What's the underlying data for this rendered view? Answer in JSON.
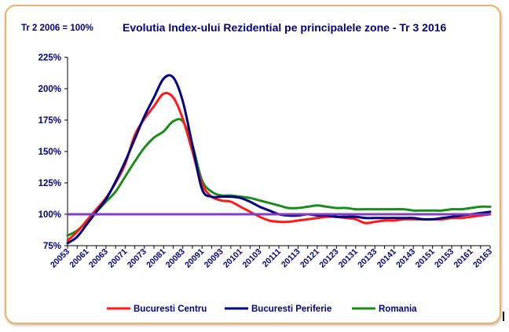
{
  "chart_data": {
    "type": "line",
    "title": "Evolutia Index-ului Rezidential pe principalele zone - Tr 3 2016",
    "subtitle": "Tr 2 2006 = 100%",
    "xlabel": "",
    "ylabel": "",
    "ylim": [
      75,
      225
    ],
    "yticks": [
      "75%",
      "100%",
      "125%",
      "150%",
      "175%",
      "200%",
      "225%"
    ],
    "yticks_values": [
      75,
      100,
      125,
      150,
      175,
      200,
      225
    ],
    "grid": false,
    "legend_position": "bottom",
    "x": [
      "20053",
      "20054",
      "20061",
      "20062",
      "20063",
      "20064",
      "20071",
      "20072",
      "20073",
      "20074",
      "20081",
      "20082",
      "20083",
      "20084",
      "20091",
      "20092",
      "20093",
      "20094",
      "20101",
      "20102",
      "20103",
      "20104",
      "20111",
      "20112",
      "20113",
      "20114",
      "20121",
      "20122",
      "20123",
      "20124",
      "20131",
      "20132",
      "20133",
      "20134",
      "20141",
      "20142",
      "20143",
      "20144",
      "20151",
      "20152",
      "20153",
      "20154",
      "20161",
      "20162",
      "20163"
    ],
    "x_tick_labels": [
      "20053",
      "20061",
      "20063",
      "20071",
      "20073",
      "20081",
      "20083",
      "20091",
      "20093",
      "20101",
      "20103",
      "20111",
      "20113",
      "20121",
      "20123",
      "20131",
      "20133",
      "20141",
      "20143",
      "20151",
      "20153",
      "20161",
      "20163"
    ],
    "series": [
      {
        "name": "Bucuresti Centru",
        "color": "#ff1a1a",
        "values": [
          79,
          86,
          95,
          104,
          113,
          125,
          140,
          163,
          176,
          186,
          196,
          193,
          176,
          150,
          124,
          114,
          111,
          110,
          106,
          102,
          98,
          95,
          94,
          94,
          95,
          96,
          97,
          98,
          98,
          97,
          96,
          93,
          94,
          95,
          95,
          96,
          96,
          96,
          96,
          96,
          97,
          97,
          98,
          99,
          100
        ]
      },
      {
        "name": "Bucuresti Periferie",
        "color": "#000080",
        "values": [
          77,
          82,
          92,
          102,
          112,
          126,
          142,
          160,
          178,
          193,
          208,
          209,
          190,
          155,
          120,
          114,
          114,
          114,
          113,
          110,
          106,
          103,
          100,
          99,
          99,
          100,
          99,
          99,
          98,
          98,
          98,
          97,
          97,
          97,
          97,
          97,
          97,
          96,
          96,
          97,
          98,
          99,
          100,
          101,
          102
        ]
      },
      {
        "name": "Romania",
        "color": "#1a8c1a",
        "values": [
          83,
          87,
          94,
          102,
          110,
          118,
          130,
          142,
          153,
          161,
          166,
          174,
          174,
          155,
          127,
          118,
          115,
          115,
          114,
          113,
          111,
          109,
          107,
          105,
          105,
          106,
          107,
          106,
          105,
          105,
          104,
          104,
          104,
          104,
          104,
          104,
          103,
          103,
          103,
          103,
          104,
          104,
          105,
          106,
          106
        ]
      }
    ],
    "reference_line": {
      "value": 100,
      "color": "#7f3fbf"
    }
  }
}
